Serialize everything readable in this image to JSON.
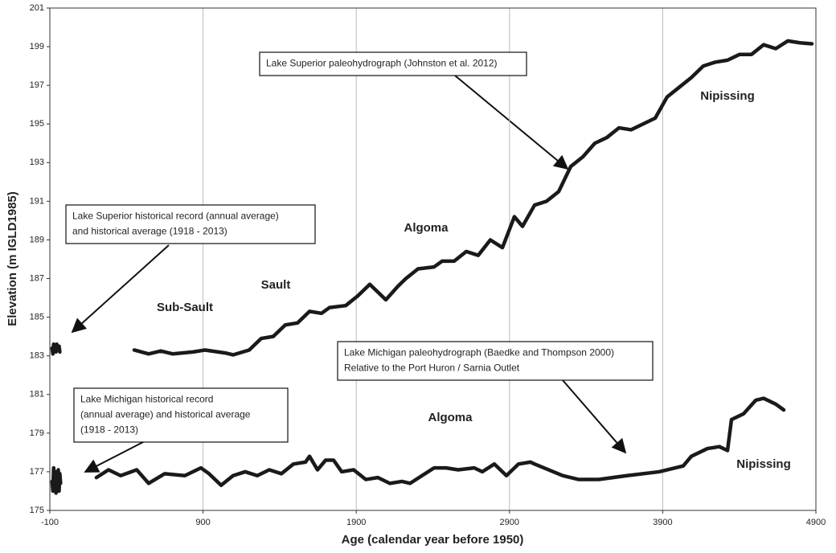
{
  "chart_data": {
    "type": "line",
    "xlabel": "Age (calendar year before 1950)",
    "ylabel": "Elevation (m IGLD1985)",
    "xlim": [
      -100,
      4900
    ],
    "xticks": [
      -100,
      900,
      1900,
      2900,
      3900,
      4900
    ],
    "ylim": [
      175,
      201
    ],
    "yticks": [
      175,
      177,
      179,
      181,
      183,
      185,
      187,
      189,
      191,
      193,
      195,
      197,
      199,
      201
    ],
    "grid": "x",
    "series": [
      {
        "color": "#1a1a1a",
        "x": [
          451,
          545,
          624,
          703,
          834,
          913,
          1044,
          1096,
          1201,
          1280,
          1358,
          1437,
          1516,
          1595,
          1673,
          1726,
          1831,
          1910,
          1988,
          2041,
          2093,
          2172,
          2224,
          2303,
          2408,
          2460,
          2539,
          2618,
          2696,
          2775,
          2854,
          2932,
          2985,
          3064,
          3142,
          3221,
          3300,
          3379,
          3457,
          3536,
          3615,
          3694,
          3772,
          3851,
          3929,
          4008,
          4087,
          4165,
          4244,
          4323,
          4402,
          4480,
          4559,
          4638,
          4717,
          4795,
          4874
        ],
        "values": [
          183.3,
          183.1,
          183.25,
          183.1,
          183.2,
          183.3,
          183.15,
          183.05,
          183.3,
          183.9,
          184.0,
          184.6,
          184.7,
          185.3,
          185.2,
          185.5,
          185.6,
          186.1,
          186.7,
          186.3,
          185.9,
          186.6,
          187.0,
          187.5,
          187.6,
          187.9,
          187.9,
          188.4,
          188.2,
          189.0,
          188.6,
          190.2,
          189.7,
          190.8,
          191.0,
          191.5,
          192.8,
          193.3,
          194.0,
          194.3,
          194.8,
          194.7,
          195.0,
          195.3,
          196.4,
          196.9,
          197.4,
          198.0,
          198.2,
          198.3,
          198.6,
          198.6,
          199.1,
          198.9,
          199.3,
          199.2,
          199.15
        ]
      },
      {
        "color": "#1a1a1a",
        "x": [
          204,
          283,
          362,
          467,
          545,
          650,
          781,
          886,
          939,
          1018,
          1096,
          1175,
          1254,
          1332,
          1411,
          1490,
          1569,
          1595,
          1647,
          1700,
          1752,
          1805,
          1883,
          1962,
          2041,
          2119,
          2198,
          2251,
          2329,
          2408,
          2486,
          2565,
          2670,
          2723,
          2801,
          2880,
          2959,
          3037,
          3064,
          3247,
          3352,
          3483,
          3667,
          3877,
          4034,
          4087,
          4192,
          4270,
          4323,
          4349,
          4428,
          4507,
          4559,
          4638,
          4690
        ],
        "values": [
          176.7,
          177.1,
          176.8,
          177.1,
          176.4,
          176.9,
          176.8,
          177.2,
          176.9,
          176.3,
          176.8,
          177.0,
          176.8,
          177.1,
          176.9,
          177.4,
          177.5,
          177.8,
          177.1,
          177.6,
          177.6,
          177.0,
          177.1,
          176.6,
          176.7,
          176.4,
          176.5,
          176.4,
          176.8,
          177.2,
          177.2,
          177.1,
          177.2,
          177.0,
          177.4,
          176.8,
          177.4,
          177.5,
          177.4,
          176.8,
          176.6,
          176.6,
          176.8,
          177.0,
          177.3,
          177.8,
          178.2,
          178.3,
          178.1,
          179.7,
          180.0,
          180.7,
          180.8,
          180.5,
          180.2
        ]
      },
      {
        "color": "#1a1a1a",
        "x": [
          -85,
          -80,
          -75,
          -70,
          -65,
          -60,
          -55,
          -50,
          -45,
          -40,
          -35
        ],
        "values": [
          183.4,
          183.1,
          183.6,
          183.3,
          183.5,
          183.2,
          183.6,
          183.4,
          183.3,
          183.5,
          183.2
        ]
      },
      {
        "color": "#1a1a1a",
        "x": [
          -85,
          -80,
          -75,
          -70,
          -65,
          -60,
          -55,
          -50,
          -45,
          -40,
          -35,
          -30
        ],
        "values": [
          176.5,
          176.0,
          177.2,
          176.3,
          177.0,
          175.9,
          176.8,
          176.4,
          177.1,
          176.0,
          176.9,
          176.4
        ]
      }
    ],
    "annotations": [
      "Nipissing",
      "Algoma",
      "Sault",
      "Sub-Sault",
      "Algoma",
      "Nipissing"
    ],
    "callouts": [
      {
        "lines": [
          "Lake Superior paleohydrograph (Johnston et al. 2012)"
        ]
      },
      {
        "lines": [
          "Lake Superior historical record (annual average)",
          "and historical average (1918 - 2013)"
        ]
      },
      {
        "lines": [
          "Lake Michigan paleohydrograph (Baedke and Thompson 2000)",
          "Relative to the Port Huron / Sarnia Outlet"
        ]
      },
      {
        "lines": [
          "Lake Michigan historical record",
          "(annual average) and historical average",
          "(1918 - 2013)"
        ]
      }
    ]
  }
}
